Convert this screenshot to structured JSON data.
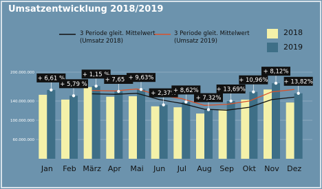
{
  "chart_data": {
    "type": "bar",
    "title": "Umsatzentwicklung 2018/2019",
    "categories": [
      "Jan",
      "Feb",
      "März",
      "Apr",
      "Mai",
      "Jun",
      "Jul",
      "Aug",
      "Sep",
      "Okt",
      "Nov",
      "Dez"
    ],
    "series": [
      {
        "name": "2018",
        "color": "#f4f1a9",
        "values": [
          153000000,
          143000000,
          169000000,
          149000000,
          150000000,
          129000000,
          127000000,
          114000000,
          123000000,
          143000000,
          164000000,
          137000000
        ]
      },
      {
        "name": "2019",
        "color": "#3e6f87",
        "values": [
          163000000,
          151000000,
          171000000,
          160000000,
          164000000,
          132000000,
          138000000,
          122000000,
          140000000,
          159000000,
          177000000,
          156000000
        ]
      },
      {
        "name": "3 Periode gleit. Mittelwert (Umsatz 2018)",
        "type": "line",
        "color": "#111111",
        "values": [
          null,
          null,
          155000000,
          154000000,
          156000000,
          143000000,
          135000000,
          123000000,
          121000000,
          127000000,
          143000000,
          148000000
        ]
      },
      {
        "name": "3 Periode gleit. Mittelwert (Umsatz 2019)",
        "type": "line",
        "color": "#d9532b",
        "values": [
          null,
          null,
          162000000,
          161000000,
          165000000,
          152000000,
          145000000,
          131000000,
          133000000,
          140000000,
          159000000,
          164000000
        ]
      }
    ],
    "growth": {
      "values": [
        6.61,
        5.79,
        1.15,
        7.65,
        9.63,
        2.37,
        8.62,
        7.32,
        13.69,
        10.96,
        8.12,
        13.82
      ],
      "value_labels": [
        "+ 6,61 %",
        "+ 5,79 %",
        "+ 1,15 %",
        "+ 7,65 %",
        "+ 9,63%",
        "+ 2,37%",
        "+ 8,62%",
        "+ 7,32%",
        "+ 13,69%",
        "+ 10,96%",
        "+ 8,12%",
        "+ 13,82%"
      ]
    },
    "ylim": [
      20000000,
      220000000
    ],
    "yticks": [
      {
        "value": 60000000,
        "label": "60.000.000"
      },
      {
        "value": 100000000,
        "label": "100.000.000"
      },
      {
        "value": 140000000,
        "label": "140.000.000"
      },
      {
        "value": 200000000,
        "label": "200.000.000"
      }
    ],
    "grid": true
  }
}
